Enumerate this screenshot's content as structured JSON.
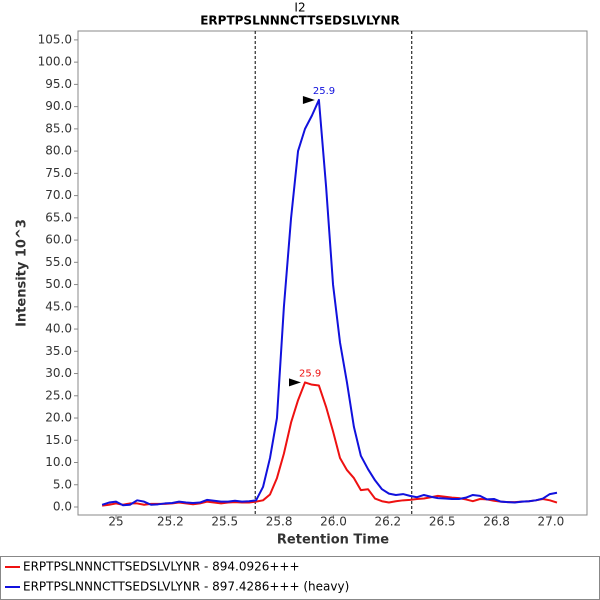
{
  "chart_data": {
    "type": "line",
    "title": "I2",
    "subtitle": "ERPTPSLNNNCTTSEDSLVLYNR",
    "x_label": "Retention Time",
    "y_label": "Intensity 10^3",
    "xlim": [
      24.825,
      27.166
    ],
    "ylim": [
      -1.8,
      107
    ],
    "xticks": [
      25,
      {
        "value": 25.25,
        "label": "25.2"
      },
      25.5,
      {
        "value": 25.75,
        "label": "25.8"
      },
      {
        "value": 26,
        "label": "26.0"
      },
      {
        "value": 26.25,
        "label": "26.2"
      },
      26.5,
      {
        "value": 26.75,
        "label": "26.8"
      },
      {
        "value": 27,
        "label": "27.0"
      }
    ],
    "yticks": [
      {
        "value": 0,
        "label": "0.0"
      },
      {
        "value": 5,
        "label": "5.0"
      },
      {
        "value": 10,
        "label": "10.0"
      },
      {
        "value": 15,
        "label": "15.0"
      },
      {
        "value": 20,
        "label": "20.0"
      },
      {
        "value": 25,
        "label": "25.0"
      },
      {
        "value": 30,
        "label": "30.0"
      },
      {
        "value": 35,
        "label": "35.0"
      },
      {
        "value": 40,
        "label": "40.0"
      },
      {
        "value": 45,
        "label": "45.0"
      },
      {
        "value": 50,
        "label": "50.0"
      },
      {
        "value": 55,
        "label": "55.0"
      },
      {
        "value": 60,
        "label": "60.0"
      },
      {
        "value": 65,
        "label": "65.0"
      },
      {
        "value": 70,
        "label": "70.0"
      },
      {
        "value": 75,
        "label": "75.0"
      },
      {
        "value": 80,
        "label": "80.0"
      },
      {
        "value": 85,
        "label": "85.0"
      },
      {
        "value": 90,
        "label": "90.0"
      },
      {
        "value": 95,
        "label": "95.0"
      },
      {
        "value": 100,
        "label": "100.0"
      },
      {
        "value": 105,
        "label": "105.0"
      }
    ],
    "boundaries": [
      25.64,
      26.36
    ],
    "x": [
      24.936,
      24.968,
      25.0,
      25.032,
      25.064,
      25.097,
      25.129,
      25.161,
      25.193,
      25.225,
      25.258,
      25.29,
      25.322,
      25.354,
      25.386,
      25.418,
      25.451,
      25.483,
      25.515,
      25.547,
      25.579,
      25.612,
      25.644,
      25.676,
      25.708,
      25.74,
      25.772,
      25.805,
      25.837,
      25.869,
      25.901,
      25.933,
      25.966,
      25.998,
      26.03,
      26.062,
      26.094,
      26.126,
      26.159,
      26.191,
      26.223,
      26.255,
      26.287,
      26.32,
      26.352,
      26.384,
      26.416,
      26.448,
      26.48,
      26.513,
      26.545,
      26.577,
      26.609,
      26.641,
      26.674,
      26.706,
      26.738,
      26.77,
      26.802,
      26.834,
      26.867,
      26.899,
      26.931,
      26.963,
      26.995,
      27.028
    ],
    "series": [
      {
        "name": "ERPTPSLNNNCTTSEDSLVLYNR - 894.0926+++",
        "color": "#ee1111",
        "values": [
          0.3,
          0.5,
          0.8,
          0.5,
          0.8,
          0.8,
          0.5,
          0.7,
          0.7,
          0.7,
          0.8,
          1.0,
          0.8,
          0.6,
          0.8,
          1.2,
          1.0,
          0.8,
          1.0,
          1.1,
          1.0,
          1.0,
          1.2,
          1.5,
          2.8,
          6.5,
          12,
          19,
          24,
          28,
          27.5,
          27.3,
          22.5,
          17,
          11,
          8.3,
          6.5,
          3.8,
          4.0,
          1.9,
          1.3,
          1.0,
          1.3,
          1.5,
          1.6,
          1.8,
          1.9,
          2.2,
          2.5,
          2.3,
          2.1,
          2.0,
          1.7,
          1.3,
          1.8,
          1.7,
          1.4,
          1.2,
          1.1,
          1.1,
          1.2,
          1.3,
          1.5,
          1.8,
          1.5,
          1.0
        ]
      },
      {
        "name": "ERPTPSLNNNCTTSEDSLVLYNR - 897.4286+++ (heavy)",
        "color": "#1111dd",
        "values": [
          0.5,
          1.0,
          1.2,
          0.4,
          0.5,
          1.5,
          1.2,
          0.5,
          0.6,
          0.8,
          0.9,
          1.2,
          1.0,
          0.9,
          1.0,
          1.6,
          1.4,
          1.2,
          1.2,
          1.4,
          1.2,
          1.3,
          1.5,
          4.5,
          11,
          20,
          45,
          65,
          80,
          85,
          88,
          91.5,
          72,
          50,
          37,
          28,
          18,
          11.5,
          8.5,
          6,
          4,
          3,
          2.7,
          2.9,
          2.5,
          2.2,
          2.7,
          2.3,
          2.0,
          1.9,
          1.8,
          1.8,
          2.1,
          2.7,
          2.5,
          1.7,
          1.8,
          1.2,
          1.1,
          1.0,
          1.2,
          1.3,
          1.5,
          1.9,
          2.9,
          3.2
        ]
      }
    ],
    "annotations": [
      {
        "text": "25.9",
        "x": 25.869,
        "y": 28,
        "series": 0
      },
      {
        "text": "25.9",
        "x": 25.933,
        "y": 91.5,
        "series": 1
      }
    ]
  }
}
